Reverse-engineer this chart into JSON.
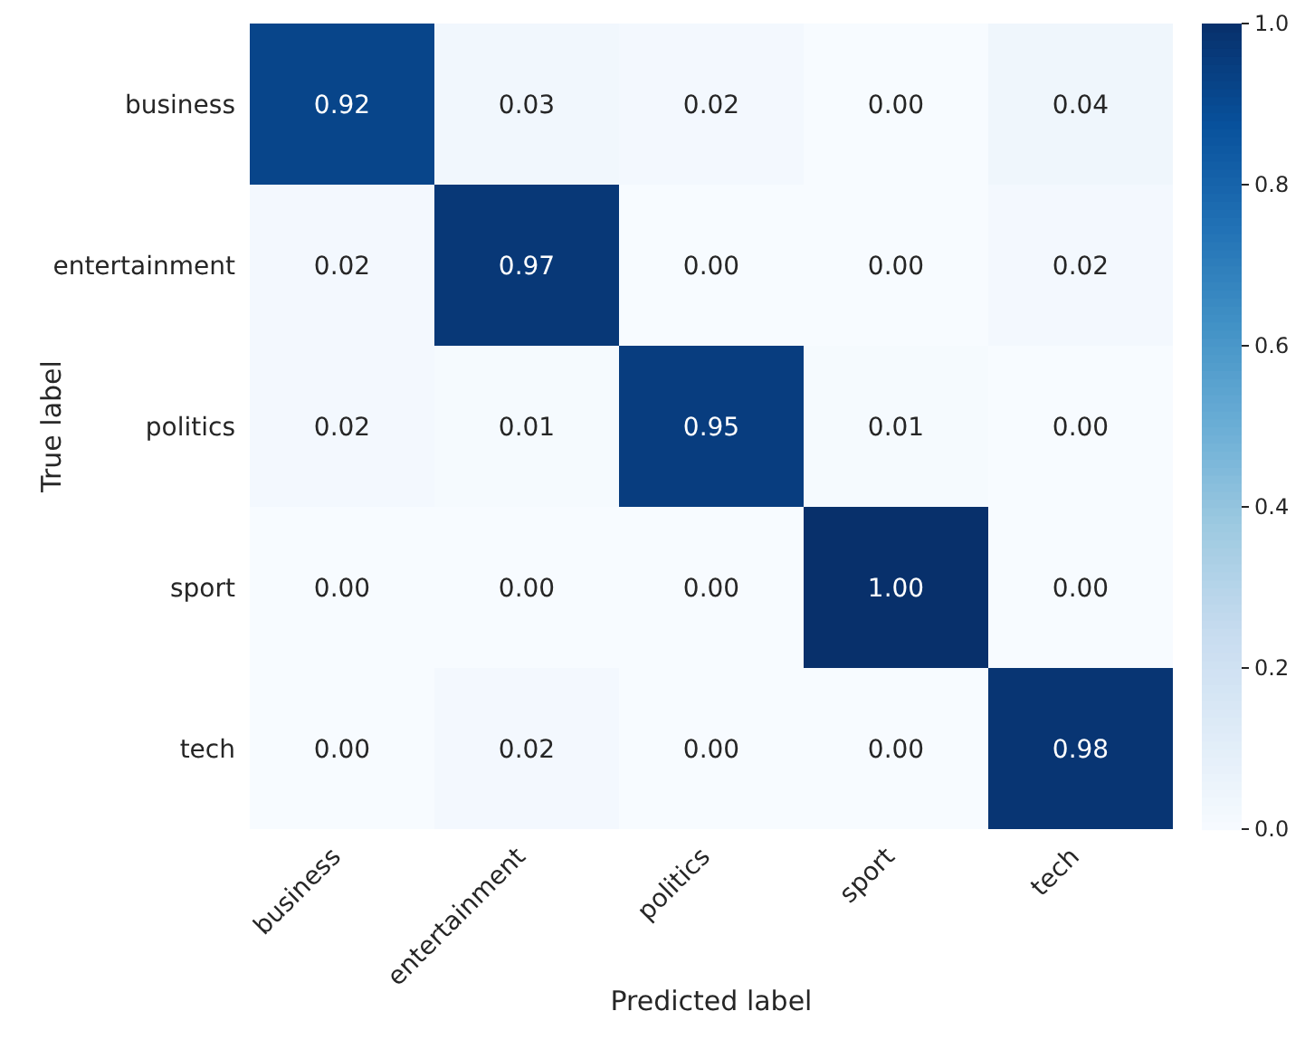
{
  "chart_data": {
    "type": "heatmap",
    "xlabel": "Predicted label",
    "ylabel": "True label",
    "categories": [
      "business",
      "entertainment",
      "politics",
      "sport",
      "tech"
    ],
    "y_categories": [
      "business",
      "entertainment",
      "politics",
      "sport",
      "tech"
    ],
    "cells": [
      [
        0.92,
        0.03,
        0.02,
        0.0,
        0.04
      ],
      [
        0.02,
        0.97,
        0.0,
        0.0,
        0.02
      ],
      [
        0.02,
        0.01,
        0.95,
        0.01,
        0.0
      ],
      [
        0.0,
        0.0,
        0.0,
        1.0,
        0.0
      ],
      [
        0.0,
        0.02,
        0.0,
        0.0,
        0.98
      ]
    ],
    "cell_labels": [
      [
        "0.92",
        "0.03",
        "0.02",
        "0.00",
        "0.04"
      ],
      [
        "0.02",
        "0.97",
        "0.00",
        "0.00",
        "0.02"
      ],
      [
        "0.02",
        "0.01",
        "0.95",
        "0.01",
        "0.00"
      ],
      [
        "0.00",
        "0.00",
        "0.00",
        "1.00",
        "0.00"
      ],
      [
        "0.00",
        "0.02",
        "0.00",
        "0.00",
        "0.98"
      ]
    ],
    "clim": [
      0,
      1
    ],
    "cticks": [
      {
        "value": 0,
        "label": "0.0"
      },
      {
        "value": 0.2,
        "label": "0.2"
      },
      {
        "value": 0.4,
        "label": "0.4"
      },
      {
        "value": 0.6,
        "label": "0.6"
      },
      {
        "value": 0.8,
        "label": "0.8"
      },
      {
        "value": 1,
        "label": "1.0"
      }
    ]
  }
}
